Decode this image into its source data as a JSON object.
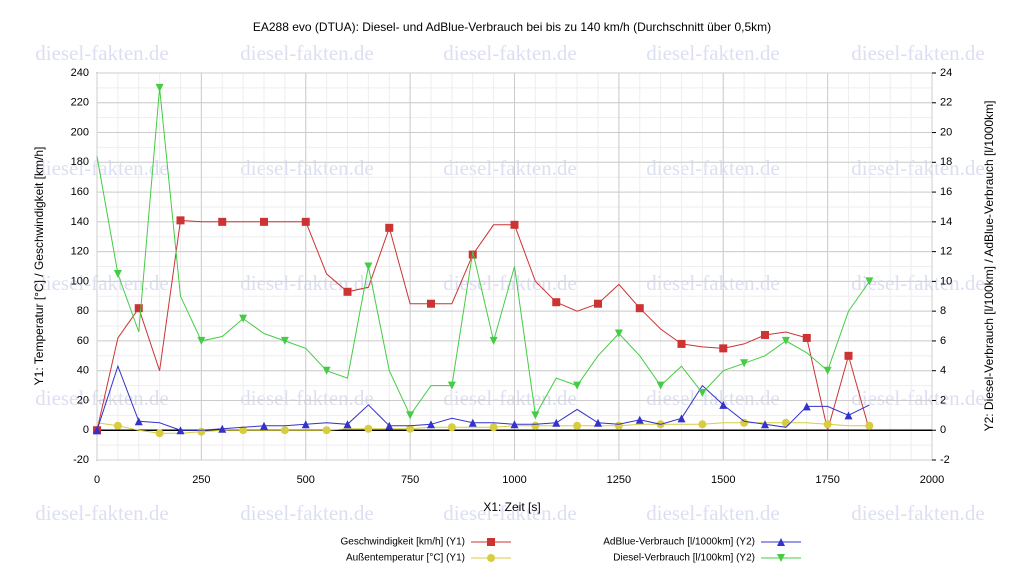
{
  "chart_data": {
    "type": "line",
    "title": "EA288 evo (DTUA): Diesel- und AdBlue-Verbrauch bei bis zu 140 km/h (Durchschnitt über 0,5km)",
    "xlabel": "X1: Zeit [s]",
    "ylabel": "Y1: Temperatur [°C] / Geschwindigkeit [km/h]",
    "y2label": "Y2: Diesel-Verbrauch [l/100km] / AdBlue-Verbrauch [l/1000km]",
    "watermark": "diesel-fakten.de",
    "x": [
      0,
      50,
      100,
      150,
      200,
      250,
      300,
      350,
      400,
      450,
      500,
      550,
      600,
      650,
      700,
      750,
      800,
      850,
      900,
      950,
      1000,
      1050,
      1100,
      1150,
      1200,
      1250,
      1300,
      1350,
      1400,
      1450,
      1500,
      1550,
      1600,
      1650,
      1700,
      1750,
      1800,
      1850
    ],
    "xlim": [
      0,
      2000
    ],
    "xticks": [
      0,
      250,
      500,
      750,
      1000,
      1250,
      1500,
      1750,
      2000
    ],
    "ylim": [
      -20,
      240
    ],
    "yticks": [
      -20,
      0,
      20,
      40,
      60,
      80,
      100,
      120,
      140,
      160,
      180,
      200,
      220,
      240
    ],
    "y2lim": [
      -2,
      24
    ],
    "y2ticks": [
      -2,
      0,
      2,
      4,
      6,
      8,
      10,
      12,
      14,
      16,
      18,
      20,
      22,
      24
    ],
    "grid": true,
    "series": [
      {
        "name": "Geschwindigkeit [km/h] (Y1)",
        "color": "#cc3333",
        "marker": "square",
        "axis": "y1",
        "values": [
          0,
          62,
          82,
          40,
          141,
          140,
          140,
          140,
          140,
          140,
          140,
          105,
          93,
          96,
          136,
          85,
          85,
          85,
          118,
          138,
          138,
          100,
          86,
          80,
          85,
          98,
          82,
          68,
          58,
          56,
          55,
          58,
          64,
          66,
          62,
          0,
          50,
          0
        ]
      },
      {
        "name": "Außentemperatur [°C] (Y1)",
        "color": "#d8cc40",
        "marker": "circle",
        "axis": "y1",
        "values": [
          5,
          3,
          0,
          -2,
          -2,
          -1,
          0,
          0,
          0,
          0,
          0,
          0,
          1,
          1,
          1,
          1,
          2,
          2,
          2,
          2,
          3,
          3,
          3,
          3,
          3,
          3,
          4,
          4,
          4,
          4,
          5,
          5,
          5,
          5,
          5,
          4,
          3,
          3
        ]
      },
      {
        "name": "AdBlue-Verbrauch [l/1000km] (Y2)",
        "color": "#3333cc",
        "marker": "triangle-up",
        "axis": "y2",
        "values": [
          0,
          4.3,
          0.6,
          0.5,
          0,
          0,
          0.1,
          0.2,
          0.3,
          0.3,
          0.4,
          0.5,
          0.4,
          1.7,
          0.3,
          0.3,
          0.4,
          0.8,
          0.5,
          0.5,
          0.4,
          0.4,
          0.5,
          1.4,
          0.5,
          0.4,
          0.7,
          0.4,
          0.8,
          3.0,
          1.7,
          0.6,
          0.4,
          0.2,
          1.6,
          1.6,
          1.0,
          1.7
        ]
      },
      {
        "name": "Diesel-Verbrauch [l/100km] (Y2)",
        "color": "#44cc44",
        "marker": "triangle-down",
        "axis": "y2",
        "values": [
          18.4,
          10.5,
          6.6,
          23,
          9,
          6,
          6.3,
          7.5,
          6.5,
          6,
          5.5,
          4,
          3.5,
          11,
          4,
          1,
          3,
          3,
          12,
          6,
          11,
          1,
          3.5,
          3,
          5,
          6.5,
          5,
          3,
          4.3,
          2.5,
          4,
          4.5,
          5,
          6,
          5.2,
          4,
          8,
          10
        ]
      }
    ]
  }
}
